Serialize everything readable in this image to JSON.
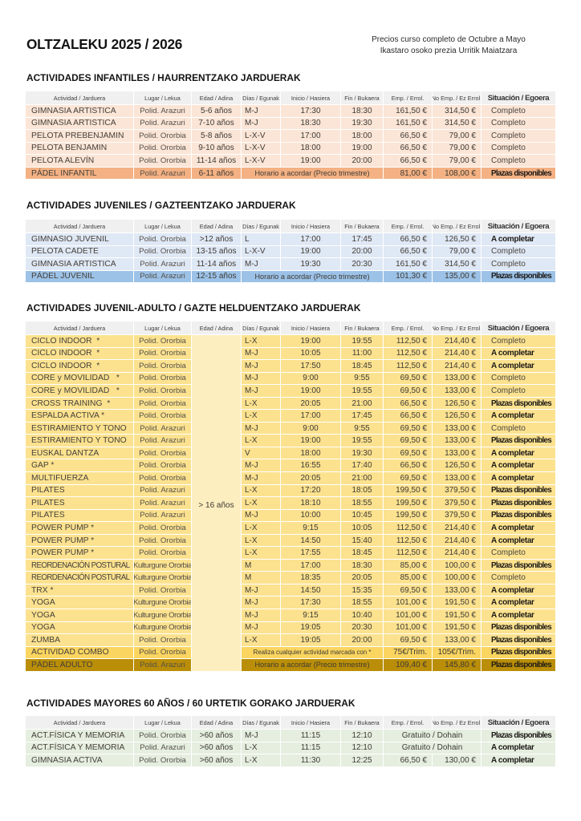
{
  "page": {
    "title": "OLTZALEKU 2025 / 2026",
    "subtitle_line1": "Precios curso completo de Octubre a Mayo",
    "subtitle_line2": "Ikastaro osoko prezia Urritik Maiatzara"
  },
  "columns": [
    "Actividad / Jarduera",
    "Lugar / Lekua",
    "Edad / Adina",
    "Días / Egunak",
    "Inicio / Hasiera",
    "Fin / Bukaera",
    "Emp. / Errol.",
    "No Emp. / Ez Errol.",
    "Situación / Egoera"
  ],
  "header_bg": "#f0f0f0",
  "tables": [
    {
      "id": "infantiles",
      "heading": "ACTIVIDADES INFANTILES / HAURRENTZAKO JARDUERAK",
      "theme": {
        "row_bg": "#fbe5d6",
        "dark_bg": "#f4b183"
      },
      "rows": [
        {
          "actividad": "GIMNASIA ARTISTICA",
          "lugar": "Polid. Arazuri",
          "edad": "5-6 años",
          "dias": "M-J",
          "inicio": "17:30",
          "fin": "18:30",
          "emp": "161,50 €",
          "noemp": "314,50 €",
          "situacion": "Completo",
          "situacion_bold": false
        },
        {
          "actividad": "GIMNASIA ARTISTICA",
          "lugar": "Polid. Arazuri",
          "edad": "7-10 años",
          "dias": "M-J",
          "inicio": "18:30",
          "fin": "19:30",
          "emp": "161,50 €",
          "noemp": "314,50 €",
          "situacion": "Completo",
          "situacion_bold": false
        },
        {
          "actividad": "PELOTA PREBENJAMIN",
          "lugar": "Polid. Ororbia",
          "edad": "5-8 años",
          "dias": "L-X-V",
          "inicio": "17:00",
          "fin": "18:00",
          "emp": "66,50 €",
          "noemp": "79,00 €",
          "situacion": "Completo",
          "situacion_bold": false
        },
        {
          "actividad": "PELOTA BENJAMIN",
          "lugar": "Polid. Ororbia",
          "edad": "9-10 años",
          "dias": "L-X-V",
          "inicio": "18:00",
          "fin": "19:00",
          "emp": "66,50 €",
          "noemp": "79,00 €",
          "situacion": "Completo",
          "situacion_bold": false
        },
        {
          "actividad": "PELOTA ALEVÍN",
          "lugar": "Polid. Ororbia",
          "edad": "11-14 años",
          "dias": "L-X-V",
          "inicio": "19:00",
          "fin": "20:00",
          "emp": "66,50 €",
          "noemp": "79,00 €",
          "situacion": "Completo",
          "situacion_bold": false
        },
        {
          "actividad": "PÁDEL INFANTIL",
          "lugar": "Polid. Arazuri",
          "edad": "6-11 años",
          "note": "Horario a acordar (Precio trimestre)",
          "emp": "81,00 €",
          "noemp": "108,00 €",
          "situacion": "Plazas disponibles",
          "situacion_bold": true,
          "bg": "dark"
        }
      ]
    },
    {
      "id": "juveniles",
      "heading": "ACTIVIDADES JUVENILES / GAZTEENTZAKO JARDUERAK",
      "theme": {
        "row_bg": "#dfe8f5",
        "dark_bg": "#9cc2e7"
      },
      "rows": [
        {
          "actividad": "GIMNASIO JUVENIL",
          "lugar": "Polid. Ororbia",
          "edad": ">12 años",
          "dias": "L",
          "inicio": "17:00",
          "fin": "17:45",
          "emp": "66,50 €",
          "noemp": "126,50 €",
          "situacion": "A completar",
          "situacion_bold": true
        },
        {
          "actividad": "PELOTA CADETE",
          "lugar": "Polid. Ororbia",
          "edad": "13-15 años",
          "dias": "L-X-V",
          "inicio": "19:00",
          "fin": "20:00",
          "emp": "66,50 €",
          "noemp": "79,00 €",
          "situacion": "Completo",
          "situacion_bold": false
        },
        {
          "actividad": "GIMNASIA ARTISTICA",
          "lugar": "Polid. Arazuri",
          "edad": "11-14 años",
          "dias": "M-J",
          "inicio": "19:30",
          "fin": "20:30",
          "emp": "161,50 €",
          "noemp": "314,50 €",
          "situacion": "Completo",
          "situacion_bold": false
        },
        {
          "actividad": "PÁDEL JUVENIL",
          "lugar": "Polid. Arazuri",
          "edad": "12-15 años",
          "note": "Horario a acordar (Precio trimestre)",
          "emp": "101,30 €",
          "noemp": "135,00 €",
          "situacion": "Plazas disponibles",
          "situacion_bold": true,
          "bg": "dark"
        }
      ]
    },
    {
      "id": "juvenil-adulto",
      "heading": "ACTIVIDADES JUVENIL-ADULTO / GAZTE HELDUENTZAKO JARDUERAK",
      "theme": {
        "row_bg": "#fce28f",
        "merged_bg": "#fdeec0",
        "mid_bg": "#fad560",
        "dark_bg": "#ba8e08"
      },
      "merged_edad": "> 16 años",
      "rows": [
        {
          "actividad": "CICLO INDOOR  *",
          "lugar": "Polid. Ororbia",
          "dias": "L-X",
          "inicio": "19:00",
          "fin": "19:55",
          "emp": "112,50 €",
          "noemp": "214,40 €",
          "situacion": "Completo",
          "situacion_bold": false
        },
        {
          "actividad": "CICLO INDOOR  *",
          "lugar": "Polid. Ororbia",
          "dias": "M-J",
          "inicio": "10:05",
          "fin": "11:00",
          "emp": "112,50 €",
          "noemp": "214,40 €",
          "situacion": "A completar",
          "situacion_bold": true
        },
        {
          "actividad": "CICLO INDOOR  *",
          "lugar": "Polid. Ororbia",
          "dias": "M-J",
          "inicio": "17:50",
          "fin": "18:45",
          "emp": "112,50 €",
          "noemp": "214,40 €",
          "situacion": "A completar",
          "situacion_bold": true
        },
        {
          "actividad": "CORE y MOVILIDAD   *",
          "lugar": "Polid. Ororbia",
          "dias": "M-J",
          "inicio": "9:00",
          "fin": "9:55",
          "emp": "69,50 €",
          "noemp": "133,00 €",
          "situacion": "Completo",
          "situacion_bold": false
        },
        {
          "actividad": "CORE y MOVILIDAD   *",
          "lugar": "Polid. Ororbia",
          "dias": "M-J",
          "inicio": "19:00",
          "fin": "19:55",
          "emp": "69,50 €",
          "noemp": "133,00 €",
          "situacion": "Completo",
          "situacion_bold": false
        },
        {
          "actividad": "CROSS TRAINING  *",
          "lugar": "Polid. Ororbia",
          "dias": "L-X",
          "inicio": "20:05",
          "fin": "21:00",
          "emp": "66,50 €",
          "noemp": "126,50 €",
          "situacion": "Plazas disponibles",
          "situacion_bold": true
        },
        {
          "actividad": "ESPALDA ACTIVA *",
          "lugar": "Polid. Ororbia",
          "dias": "L-X",
          "inicio": "17:00",
          "fin": "17:45",
          "emp": "66,50 €",
          "noemp": "126,50 €",
          "situacion": "A completar",
          "situacion_bold": true
        },
        {
          "actividad": "ESTIRAMIENTO Y TONO",
          "lugar": "Polid. Arazuri",
          "dias": "M-J",
          "inicio": "9:00",
          "fin": "9:55",
          "emp": "69,50 €",
          "noemp": "133,00 €",
          "situacion": "Completo",
          "situacion_bold": false
        },
        {
          "actividad": "ESTIRAMIENTO Y TONO",
          "lugar": "Polid. Arazuri",
          "dias": "L-X",
          "inicio": "19:00",
          "fin": "19:55",
          "emp": "69,50 €",
          "noemp": "133,00 €",
          "situacion": "Plazas disponibles",
          "situacion_bold": true
        },
        {
          "actividad": "EUSKAL DANTZA",
          "lugar": "Polid. Ororbia",
          "dias": "V",
          "inicio": "18:00",
          "fin": "19:30",
          "emp": "69,50 €",
          "noemp": "133,00 €",
          "situacion": "A completar",
          "situacion_bold": true
        },
        {
          "actividad": "GAP *",
          "lugar": "Polid. Ororbia",
          "dias": "M-J",
          "inicio": "16:55",
          "fin": "17:40",
          "emp": "66,50 €",
          "noemp": "126,50 €",
          "situacion": "A completar",
          "situacion_bold": true
        },
        {
          "actividad": "MULTIFUERZA",
          "lugar": "Polid. Ororbia",
          "dias": "M-J",
          "inicio": "20:05",
          "fin": "21:00",
          "emp": "69,50 €",
          "noemp": "133,00 €",
          "situacion": "A completar",
          "situacion_bold": true
        },
        {
          "actividad": "PILATES",
          "lugar": "Polid. Arazuri",
          "dias": "L-X",
          "inicio": "17:20",
          "fin": "18:05",
          "emp": "199,50 €",
          "noemp": "379,50 €",
          "situacion": "Plazas disponibles",
          "situacion_bold": true
        },
        {
          "actividad": "PILATES",
          "lugar": "Polid. Arazuri",
          "dias": "L-X",
          "inicio": "18:10",
          "fin": "18:55",
          "emp": "199,50 €",
          "noemp": "379,50 €",
          "situacion": "Plazas disponibles",
          "situacion_bold": true
        },
        {
          "actividad": "PILATES",
          "lugar": "Polid. Arazuri",
          "dias": "M-J",
          "inicio": "10:00",
          "fin": "10:45",
          "emp": "199,50 €",
          "noemp": "379,50 €",
          "situacion": "Plazas disponibles",
          "situacion_bold": true
        },
        {
          "actividad": "POWER PUMP *",
          "lugar": "Polid. Ororbia",
          "dias": "L-X",
          "inicio": "9:15",
          "fin": "10:05",
          "emp": "112,50 €",
          "noemp": "214,40 €",
          "situacion": "A completar",
          "situacion_bold": true
        },
        {
          "actividad": "POWER PUMP *",
          "lugar": "Polid. Ororbia",
          "dias": "L-X",
          "inicio": "14:50",
          "fin": "15:40",
          "emp": "112,50 €",
          "noemp": "214,40 €",
          "situacion": "A completar",
          "situacion_bold": true
        },
        {
          "actividad": "POWER PUMP *",
          "lugar": "Polid. Ororbia",
          "dias": "L-X",
          "inicio": "17:55",
          "fin": "18:45",
          "emp": "112,50 €",
          "noemp": "214,40 €",
          "situacion": "Completo",
          "situacion_bold": false
        },
        {
          "actividad": "REORDENACIÓN POSTURAL",
          "lugar": "Kulturgune Ororbia",
          "dias": "M",
          "inicio": "17:00",
          "fin": "18:30",
          "emp": "85,00 €",
          "noemp": "100,00 €",
          "situacion": "Plazas disponibles",
          "situacion_bold": true
        },
        {
          "actividad": "REORDENACIÓN POSTURAL",
          "lugar": "Kulturgune Ororbia",
          "dias": "M",
          "inicio": "18:35",
          "fin": "20:05",
          "emp": "85,00 €",
          "noemp": "100,00 €",
          "situacion": "Completo",
          "situacion_bold": false
        },
        {
          "actividad": "TRX *",
          "lugar": "Polid. Ororbia",
          "dias": "M-J",
          "inicio": "14:50",
          "fin": "15:35",
          "emp": "69,50 €",
          "noemp": "133,00 €",
          "situacion": "A completar",
          "situacion_bold": true
        },
        {
          "actividad": "YOGA",
          "lugar": "Kulturgune Ororbia",
          "dias": "M-J",
          "inicio": "17:30",
          "fin": "18:55",
          "emp": "101,00 €",
          "noemp": "191,50 €",
          "situacion": "A completar",
          "situacion_bold": true
        },
        {
          "actividad": "YOGA",
          "lugar": "Kulturgune Ororbia",
          "dias": "M-J",
          "inicio": "9:15",
          "fin": "10:40",
          "emp": "101,00 €",
          "noemp": "191,50 €",
          "situacion": "A completar",
          "situacion_bold": true
        },
        {
          "actividad": "YOGA",
          "lugar": "Kulturgune Ororbia",
          "dias": "M-J",
          "inicio": "19:05",
          "fin": "20:30",
          "emp": "101,00 €",
          "noemp": "191,50 €",
          "situacion": "Plazas disponibles",
          "situacion_bold": true
        },
        {
          "actividad": "ZUMBA",
          "lugar": "Polid. Ororbia",
          "dias": "L-X",
          "inicio": "19:05",
          "fin": "20:00",
          "emp": "69,50 €",
          "noemp": "133,00 €",
          "situacion": "Plazas disponibles",
          "situacion_bold": true
        },
        {
          "actividad": "ACTIVIDAD COMBO",
          "lugar": "Polid. Ororbia",
          "note": "Realiza cualquier actividad marcada con *",
          "note_small": true,
          "emp": "75€/Trim.",
          "noemp": "105€/Trim.",
          "situacion": "Plazas disponibles",
          "situacion_bold": true,
          "bg": "mid"
        },
        {
          "actividad": "PÁDEL ADULTO",
          "lugar": "Polid. Arazuri",
          "note": "Horario a acordar (Precio trimestre)",
          "emp": "109,40 €",
          "noemp": "145,80 €",
          "situacion": "Plazas disponibles",
          "situacion_bold": true,
          "bg": "dark"
        }
      ]
    },
    {
      "id": "mayores",
      "heading": "ACTIVIDADES MAYORES 60 AÑOS / 60 URTETIK GORAKO JARDUERAK",
      "theme": {
        "row_bg": "#e5eedf"
      },
      "rows": [
        {
          "actividad": "ACT.FÍSICA Y MEMORIA",
          "lugar": "Polid. Ororbia",
          "edad": ">60 años",
          "dias": "M-J",
          "inicio": "11:15",
          "fin": "12:10",
          "price_span": "Gratuito / Dohain",
          "situacion": "Plazas disponibles",
          "situacion_bold": true
        },
        {
          "actividad": "ACT.FÍSICA Y MEMORIA",
          "lugar": "Polid. Arazuri",
          "edad": ">60 años",
          "dias": "L-X",
          "inicio": "11:15",
          "fin": "12:10",
          "price_span": "Gratuito / Dohain",
          "situacion": "A completar",
          "situacion_bold": true
        },
        {
          "actividad": "GIMNASIA ACTIVA",
          "lugar": "Polid. Ororbia",
          "edad": ">60 años",
          "dias": "L-X",
          "inicio": "11:30",
          "fin": "12:25",
          "emp": "66,50 €",
          "noemp": "130,00 €",
          "situacion": "A completar",
          "situacion_bold": true
        }
      ]
    }
  ]
}
